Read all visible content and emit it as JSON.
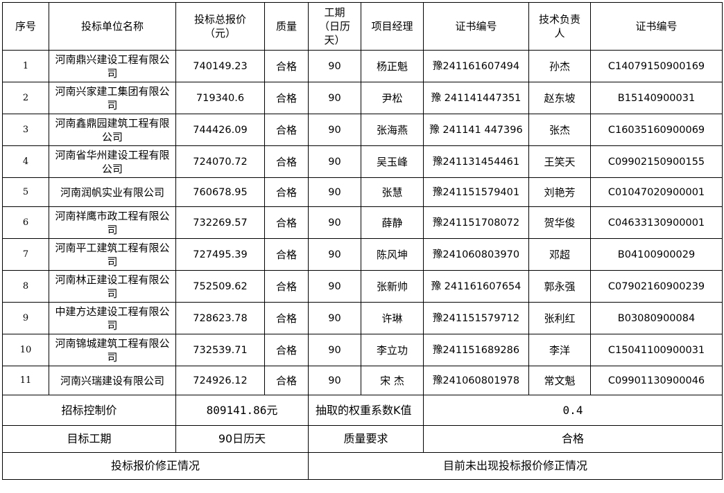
{
  "headers": [
    "序号",
    "投标单位名称",
    "投标总报价（元）",
    "质量",
    "工期（日历天）",
    "项目经理",
    "证书编号",
    "技术负责人",
    "证书编号"
  ],
  "rows": [
    {
      "seq": "1",
      "company": "河南鼎兴建设工程有限公司",
      "price": "740149.23",
      "quality": "合格",
      "period": "90",
      "manager": "杨正魁",
      "manager_cert": "豫241161607494",
      "tech_lead": "孙杰",
      "tech_cert": "C14079150900169"
    },
    {
      "seq": "2",
      "company": "河南兴家建工集团有限公司",
      "price": "719340.6",
      "quality": "合格",
      "period": "90",
      "manager": "尹松",
      "manager_cert": "豫 241141447351",
      "tech_lead": "赵东坡",
      "tech_cert": "B15140900031"
    },
    {
      "seq": "3",
      "company": "河南鑫鼎园建筑工程有限公司",
      "price": "744426.09",
      "quality": "合格",
      "period": "90",
      "manager": "张海燕",
      "manager_cert": "豫 241141 447396",
      "tech_lead": "张杰",
      "tech_cert": "C16035160900069"
    },
    {
      "seq": "4",
      "company": "河南省华州建设工程有限公司",
      "price": "724070.72",
      "quality": "合格",
      "period": "90",
      "manager": "吴玉峰",
      "manager_cert": "豫241131454461",
      "tech_lead": "王笑天",
      "tech_cert": "C09902150900155"
    },
    {
      "seq": "5",
      "company": "河南润帆实业有限公司",
      "price": "760678.95",
      "quality": "合格",
      "period": "90",
      "manager": "张慧",
      "manager_cert": "豫241151579401",
      "tech_lead": "刘艳芳",
      "tech_cert": "C01047020900001"
    },
    {
      "seq": "6",
      "company": "河南祥鹰市政工程有限公司",
      "price": "732269.57",
      "quality": "合格",
      "period": "90",
      "manager": "薛静",
      "manager_cert": "豫241151708072",
      "tech_lead": "贺华俊",
      "tech_cert": "C04633130900001"
    },
    {
      "seq": "7",
      "company": "河南平工建筑工程有限公司",
      "price": "727495.39",
      "quality": "合格",
      "period": "90",
      "manager": "陈风坤",
      "manager_cert": "豫241060803970",
      "tech_lead": "邓超",
      "tech_cert": "B04100900029"
    },
    {
      "seq": "8",
      "company": "河南林正建设工程有限公司",
      "price": "752509.62",
      "quality": "合格",
      "period": "90",
      "manager": "张新帅",
      "manager_cert": "豫 241161607654",
      "tech_lead": "郭永强",
      "tech_cert": "C07902160900239"
    },
    {
      "seq": "9",
      "company": "中建方达建设工程有限公司",
      "price": "728623.78",
      "quality": "合格",
      "period": "90",
      "manager": "许琳",
      "manager_cert": "豫241151579712",
      "tech_lead": "张利红",
      "tech_cert": "B03080900084"
    },
    {
      "seq": "10",
      "company": "河南锦城建筑工程有限公司",
      "price": "732539.71",
      "quality": "合格",
      "period": "90",
      "manager": "李立功",
      "manager_cert": "豫241151689286",
      "tech_lead": "李洋",
      "tech_cert": "C15041100900031"
    },
    {
      "seq": "11",
      "company": "河南兴瑞建设有限公司",
      "price": "724926.12",
      "quality": "合格",
      "period": "90",
      "manager": "宋 杰",
      "manager_cert": "豫241060801978",
      "tech_lead": "常文魁",
      "tech_cert": "C09901130900046"
    }
  ],
  "footer": {
    "control_price_label": "招标控制价",
    "control_price_value": "809141.86元",
    "k_label": "抽取的权重系数K值",
    "k_value": "0.4",
    "target_period_label": "目标工期",
    "target_period_value": "90日历天",
    "quality_req_label": "质量要求",
    "quality_req_value": "合格",
    "correction_label": "投标报价修正情况",
    "correction_value": "目前未出现投标报价修正情况"
  }
}
